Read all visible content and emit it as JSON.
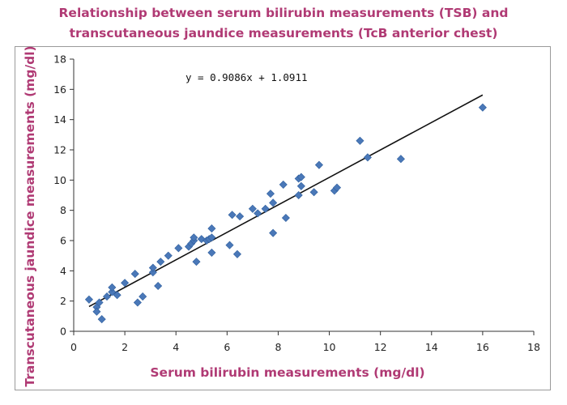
{
  "chart_data": {
    "type": "scatter",
    "title_lines": [
      "Relationship between serum bilirubin measurements (TSB) and",
      "transcutaneous jaundice measurements (TcB anterior chest)"
    ],
    "xlabel": "Serum bilirubin measurements (mg/dl)",
    "ylabel": "Transcutaneous jaundice measurements (mg/dl)",
    "xlim": [
      0,
      18
    ],
    "ylim": [
      0,
      18
    ],
    "xticks": [
      "0",
      "2",
      "4",
      "6",
      "8",
      "10",
      "12",
      "14",
      "16",
      "18"
    ],
    "yticks": [
      "0",
      "2",
      "4",
      "6",
      "8",
      "10",
      "12",
      "14",
      "16",
      "18"
    ],
    "grid": false,
    "marker_color": "#4a78b8",
    "trendline": {
      "equation": "y = 0.9086x + 1.0911",
      "slope": 0.9086,
      "intercept": 1.0911,
      "x_range": [
        0.6,
        16.0
      ]
    },
    "points": [
      [
        0.6,
        2.1
      ],
      [
        0.9,
        1.6
      ],
      [
        0.9,
        1.3
      ],
      [
        1.0,
        1.9
      ],
      [
        1.1,
        0.8
      ],
      [
        1.3,
        2.3
      ],
      [
        1.5,
        2.6
      ],
      [
        1.5,
        2.9
      ],
      [
        1.7,
        2.4
      ],
      [
        2.0,
        3.2
      ],
      [
        2.4,
        3.8
      ],
      [
        2.5,
        1.9
      ],
      [
        2.7,
        2.3
      ],
      [
        3.1,
        3.9
      ],
      [
        3.1,
        4.2
      ],
      [
        3.3,
        3.0
      ],
      [
        3.4,
        4.6
      ],
      [
        3.7,
        5.0
      ],
      [
        4.1,
        5.5
      ],
      [
        4.5,
        5.6
      ],
      [
        4.6,
        5.8
      ],
      [
        4.7,
        6.0
      ],
      [
        4.7,
        6.2
      ],
      [
        4.8,
        4.6
      ],
      [
        5.0,
        6.1
      ],
      [
        5.2,
        6.0
      ],
      [
        5.3,
        6.1
      ],
      [
        5.4,
        6.2
      ],
      [
        5.4,
        6.8
      ],
      [
        5.4,
        5.2
      ],
      [
        6.1,
        5.7
      ],
      [
        6.2,
        7.7
      ],
      [
        6.4,
        5.1
      ],
      [
        6.5,
        7.6
      ],
      [
        7.0,
        8.1
      ],
      [
        7.2,
        7.8
      ],
      [
        7.5,
        8.1
      ],
      [
        7.7,
        9.1
      ],
      [
        7.8,
        6.5
      ],
      [
        7.8,
        8.5
      ],
      [
        8.2,
        9.7
      ],
      [
        8.3,
        7.5
      ],
      [
        8.8,
        9.0
      ],
      [
        8.8,
        10.1
      ],
      [
        8.9,
        10.2
      ],
      [
        8.9,
        9.6
      ],
      [
        9.4,
        9.2
      ],
      [
        9.6,
        11.0
      ],
      [
        10.2,
        9.3
      ],
      [
        10.3,
        9.5
      ],
      [
        11.2,
        12.6
      ],
      [
        11.5,
        11.5
      ],
      [
        12.8,
        11.4
      ],
      [
        16.0,
        14.8
      ]
    ]
  }
}
